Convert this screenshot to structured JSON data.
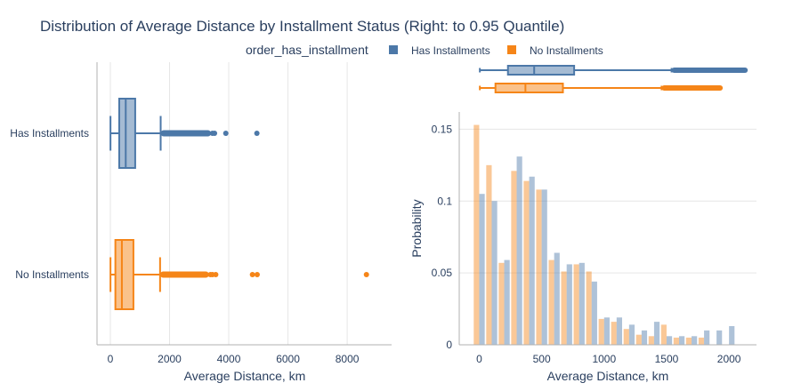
{
  "chart_data": {
    "title": "Distribution of Average Distance by Installment Status (Right: to 0.95 Quantile)",
    "legend": {
      "title": "order_has_installment",
      "placement": "top",
      "entries": [
        {
          "name": "Has Installments",
          "color": "#4c78a8"
        },
        {
          "name": "No Installments",
          "color": "#f58518"
        }
      ]
    },
    "colors": {
      "has": "#4c78a8",
      "no": "#f58518",
      "grid": "#e6e6e6",
      "axis": "#b0b0b0",
      "text": "#2a3f5f"
    },
    "charts": [
      {
        "type": "box",
        "orientation": "horizontal",
        "xlabel": "Average Distance, km",
        "xlim": [
          -450,
          9500
        ],
        "xticks": [
          0,
          2000,
          4000,
          6000,
          8000
        ],
        "xtick_labels": [
          "0",
          "2000",
          "4000",
          "6000",
          "8000"
        ],
        "categories": [
          "Has Installments",
          "No Installments"
        ],
        "boxes": [
          {
            "name": "Has Installments",
            "whisker_low": 5,
            "q1": 300,
            "median": 520,
            "q3": 840,
            "whisker_high": 1700,
            "outlier_band": [
              1700,
              3400
            ],
            "outliers": [
              3450,
              3520,
              3900,
              4950
            ]
          },
          {
            "name": "No Installments",
            "whisker_low": 5,
            "q1": 170,
            "median": 390,
            "q3": 780,
            "whisker_high": 1680,
            "outlier_band": [
              1680,
              3330
            ],
            "outliers": [
              3380,
              3450,
              3560,
              4800,
              4960,
              8650
            ]
          }
        ]
      },
      {
        "type": "box",
        "orientation": "horizontal",
        "role": "marginal",
        "xlim": [
          -160,
          2220
        ],
        "boxes": [
          {
            "name": "Has Installments",
            "whisker_low": 5,
            "q1": 230,
            "median": 440,
            "q3": 760,
            "whisker_high": 1540,
            "outlier_band": [
              1540,
              2150
            ]
          },
          {
            "name": "No Installments",
            "whisker_low": 5,
            "q1": 130,
            "median": 370,
            "q3": 670,
            "whisker_high": 1460,
            "outlier_band": [
              1460,
              1950
            ]
          }
        ]
      },
      {
        "type": "bar",
        "subtype": "histogram",
        "xlabel": "Average Distance, km",
        "ylabel": "Probability",
        "xlim": [
          -160,
          2220
        ],
        "ylim": [
          0,
          0.162
        ],
        "xticks": [
          0,
          500,
          1000,
          1500,
          2000
        ],
        "xtick_labels": [
          "0",
          "500",
          "1000",
          "1500",
          "2000"
        ],
        "yticks": [
          0,
          0.05,
          0.1,
          0.15
        ],
        "ytick_labels": [
          "0",
          "0.05",
          "0.1",
          "0.15"
        ],
        "bin_start": -50,
        "bin_width": 100,
        "series": [
          {
            "name": "No Installments",
            "values": [
              0.153,
              0.125,
              0.057,
              0.121,
              0.114,
              0.108,
              0.059,
              0.051,
              0.056,
              0.051,
              0.018,
              0.016,
              0.011,
              0.007,
              0.006,
              0.014,
              0.005,
              0.005,
              0.005,
              0.0,
              0.0
            ]
          },
          {
            "name": "Has Installments",
            "values": [
              0.105,
              0.1,
              0.059,
              0.131,
              0.117,
              0.108,
              0.064,
              0.056,
              0.057,
              0.044,
              0.019,
              0.019,
              0.014,
              0.01,
              0.016,
              0.006,
              0.006,
              0.006,
              0.01,
              0.01,
              0.013
            ]
          }
        ]
      }
    ]
  }
}
